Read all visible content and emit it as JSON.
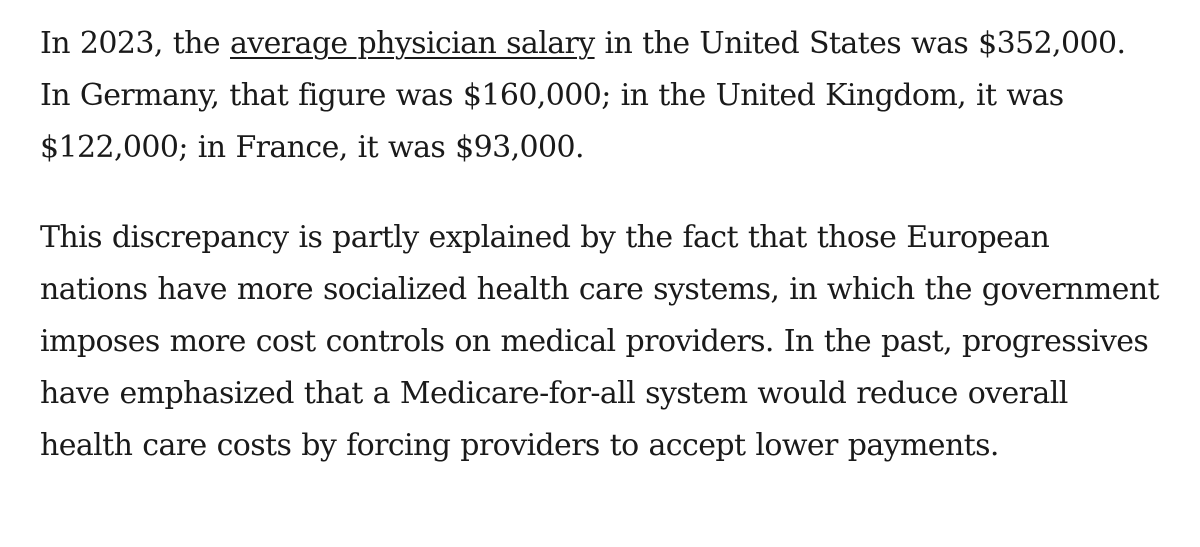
{
  "paragraph_1": {
    "before_link": "In 2023, the ",
    "link_text": "average physician salary",
    "after_link": " in the United States was $352,000. In Germany, that figure was $160,000; in the United Kingdom, it was $122,000; in France, it was $93,000."
  },
  "paragraph_2": {
    "text": "This discrepancy is partly explained by the fact that those European nations have more socialized health care systems, in which the government imposes more cost controls on medical providers. In the past, progressives have emphasized that a Medicare-for-all system would reduce overall health care costs by forcing providers to accept lower payments."
  }
}
